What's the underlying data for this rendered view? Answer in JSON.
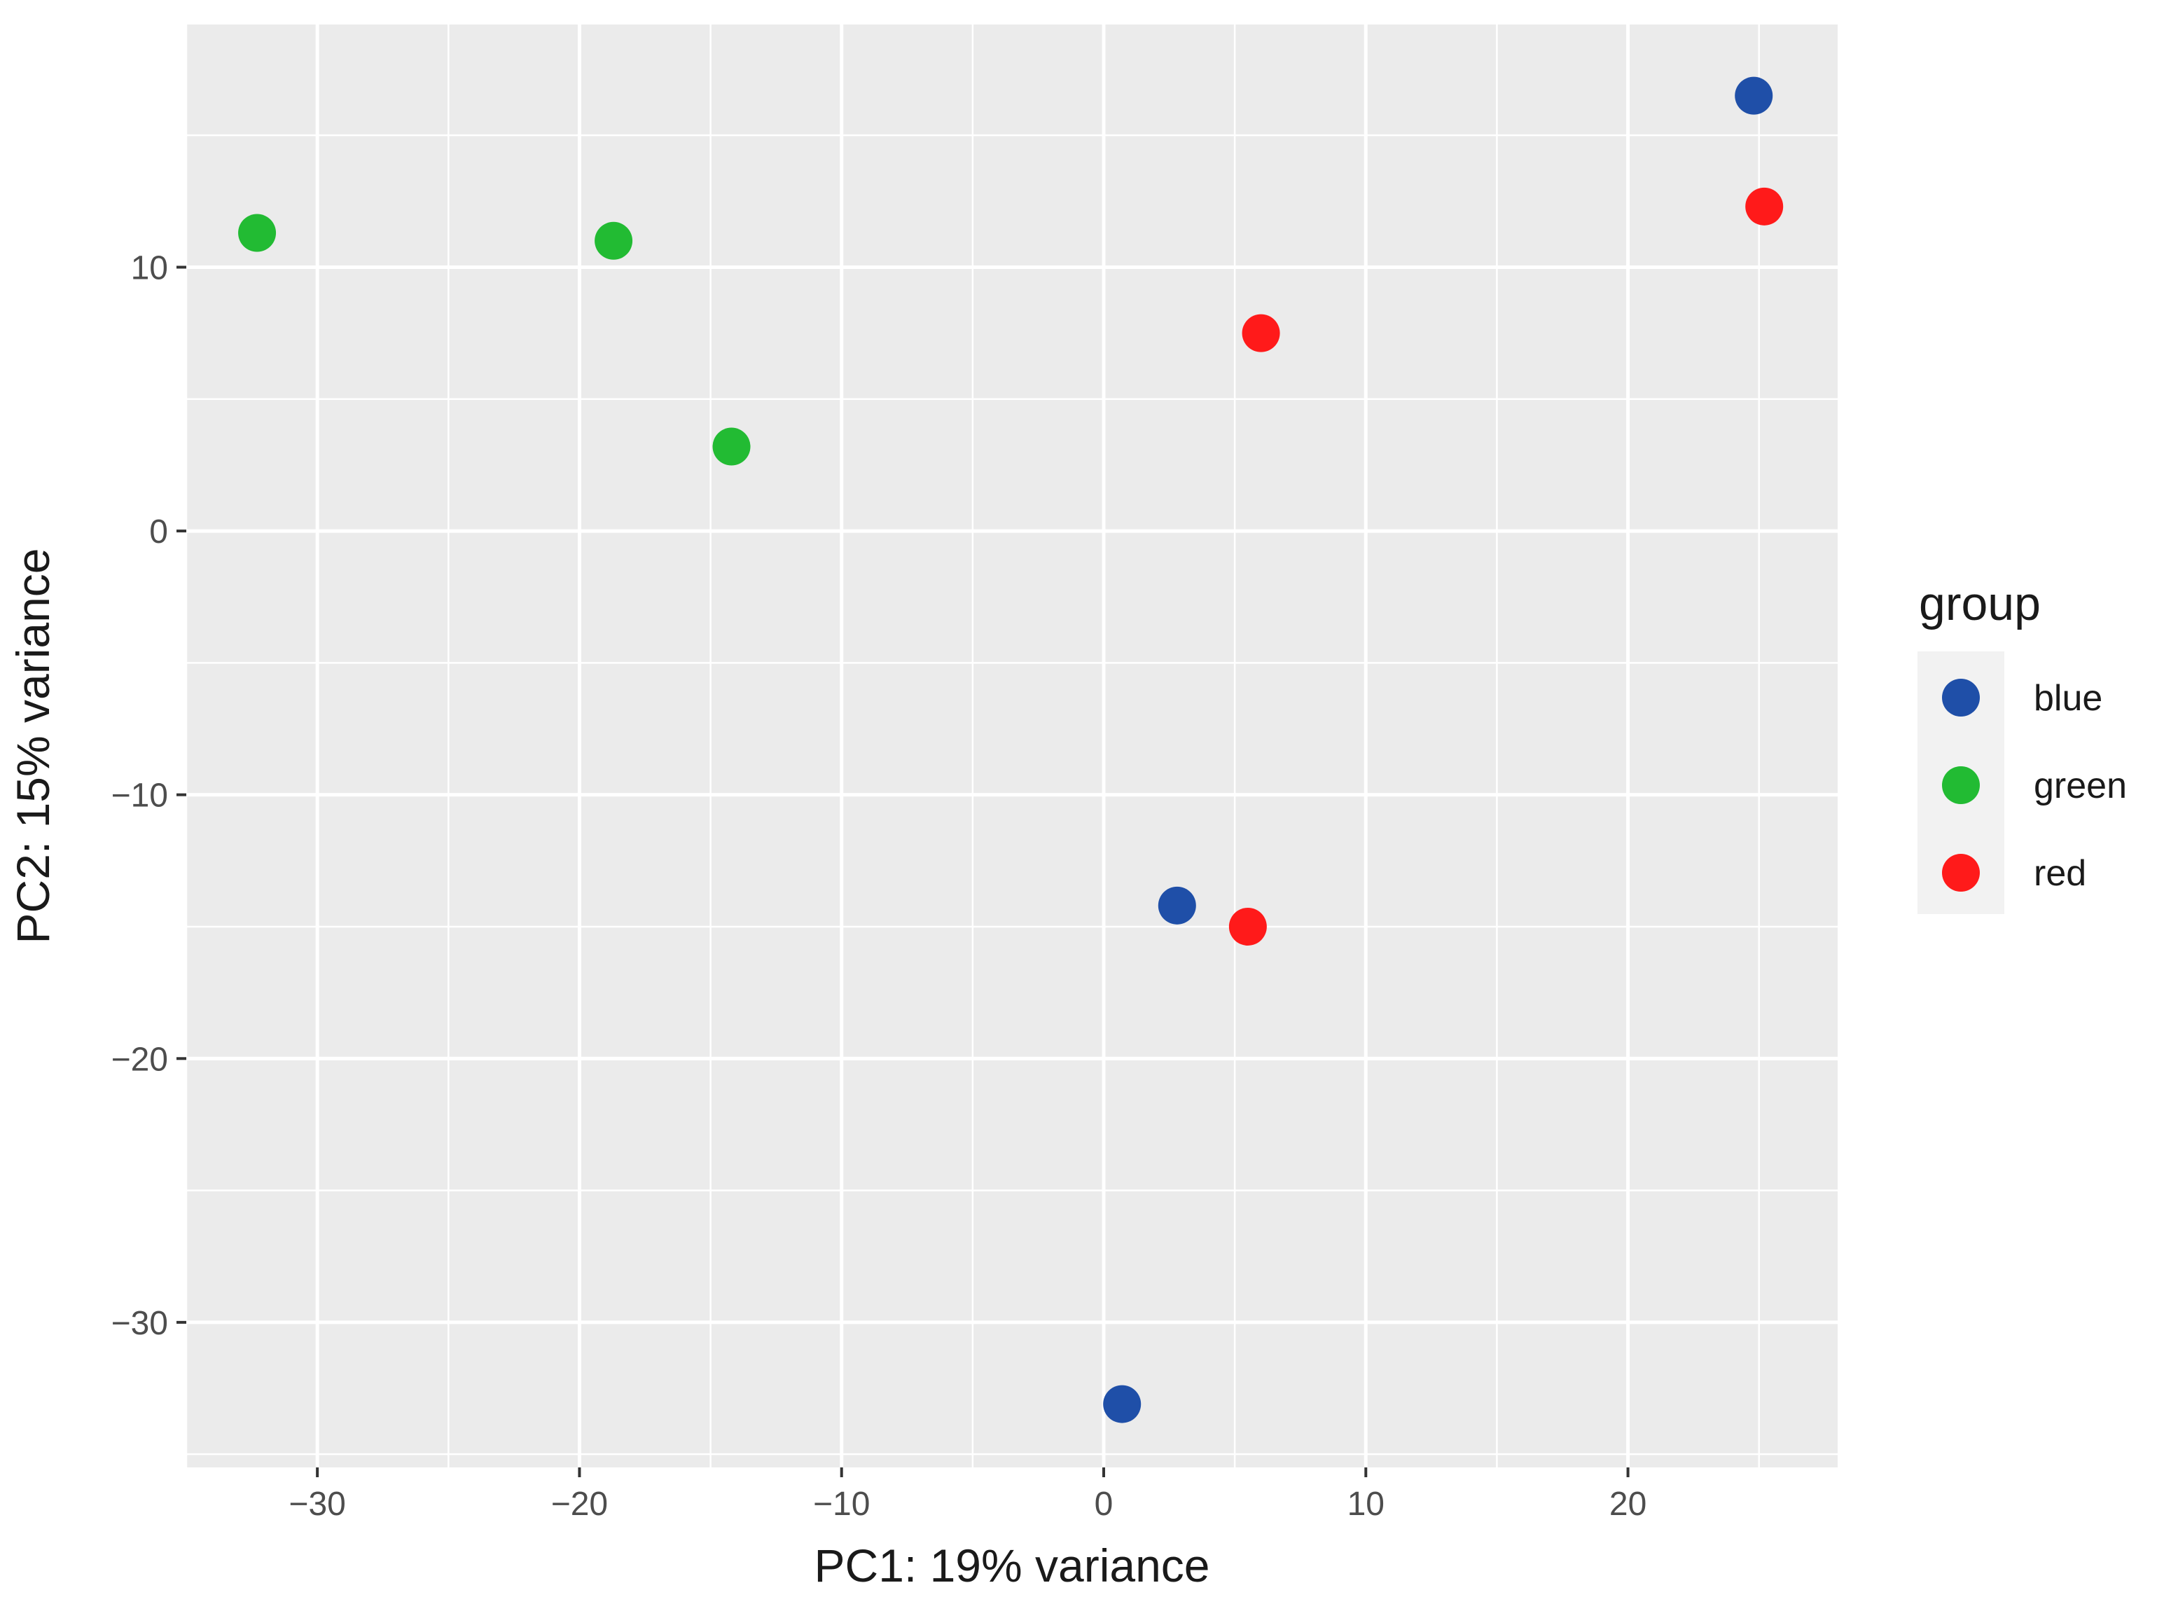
{
  "chart_data": {
    "type": "scatter",
    "xlabel": "PC1: 19% variance",
    "ylabel": "PC2: 15% variance",
    "xlim": [
      -35,
      28
    ],
    "ylim": [
      -35.5,
      19.2
    ],
    "x_ticks": [
      -30,
      -20,
      -10,
      0,
      10,
      20
    ],
    "y_ticks": [
      -30,
      -20,
      -10,
      0,
      10
    ],
    "x_tick_labels": [
      "−30",
      "−20",
      "−10",
      "0",
      "10",
      "20"
    ],
    "y_tick_labels": [
      "−30",
      "−20",
      "−10",
      "0",
      "10"
    ],
    "grid": true,
    "legend": {
      "title": "group",
      "position": "right",
      "entries": [
        "blue",
        "green",
        "red"
      ]
    },
    "series": [
      {
        "name": "blue",
        "color": "#1f4fa8",
        "points": [
          [
            24.8,
            16.5
          ],
          [
            2.8,
            -14.2
          ],
          [
            0.7,
            -33.1
          ]
        ]
      },
      {
        "name": "green",
        "color": "#22bb33",
        "points": [
          [
            -32.3,
            11.3
          ],
          [
            -18.7,
            11.0
          ],
          [
            -14.2,
            3.2
          ]
        ]
      },
      {
        "name": "red",
        "color": "#ff1a1a",
        "points": [
          [
            25.2,
            12.3
          ],
          [
            6.0,
            7.5
          ],
          [
            5.5,
            -15.0
          ]
        ]
      }
    ]
  }
}
